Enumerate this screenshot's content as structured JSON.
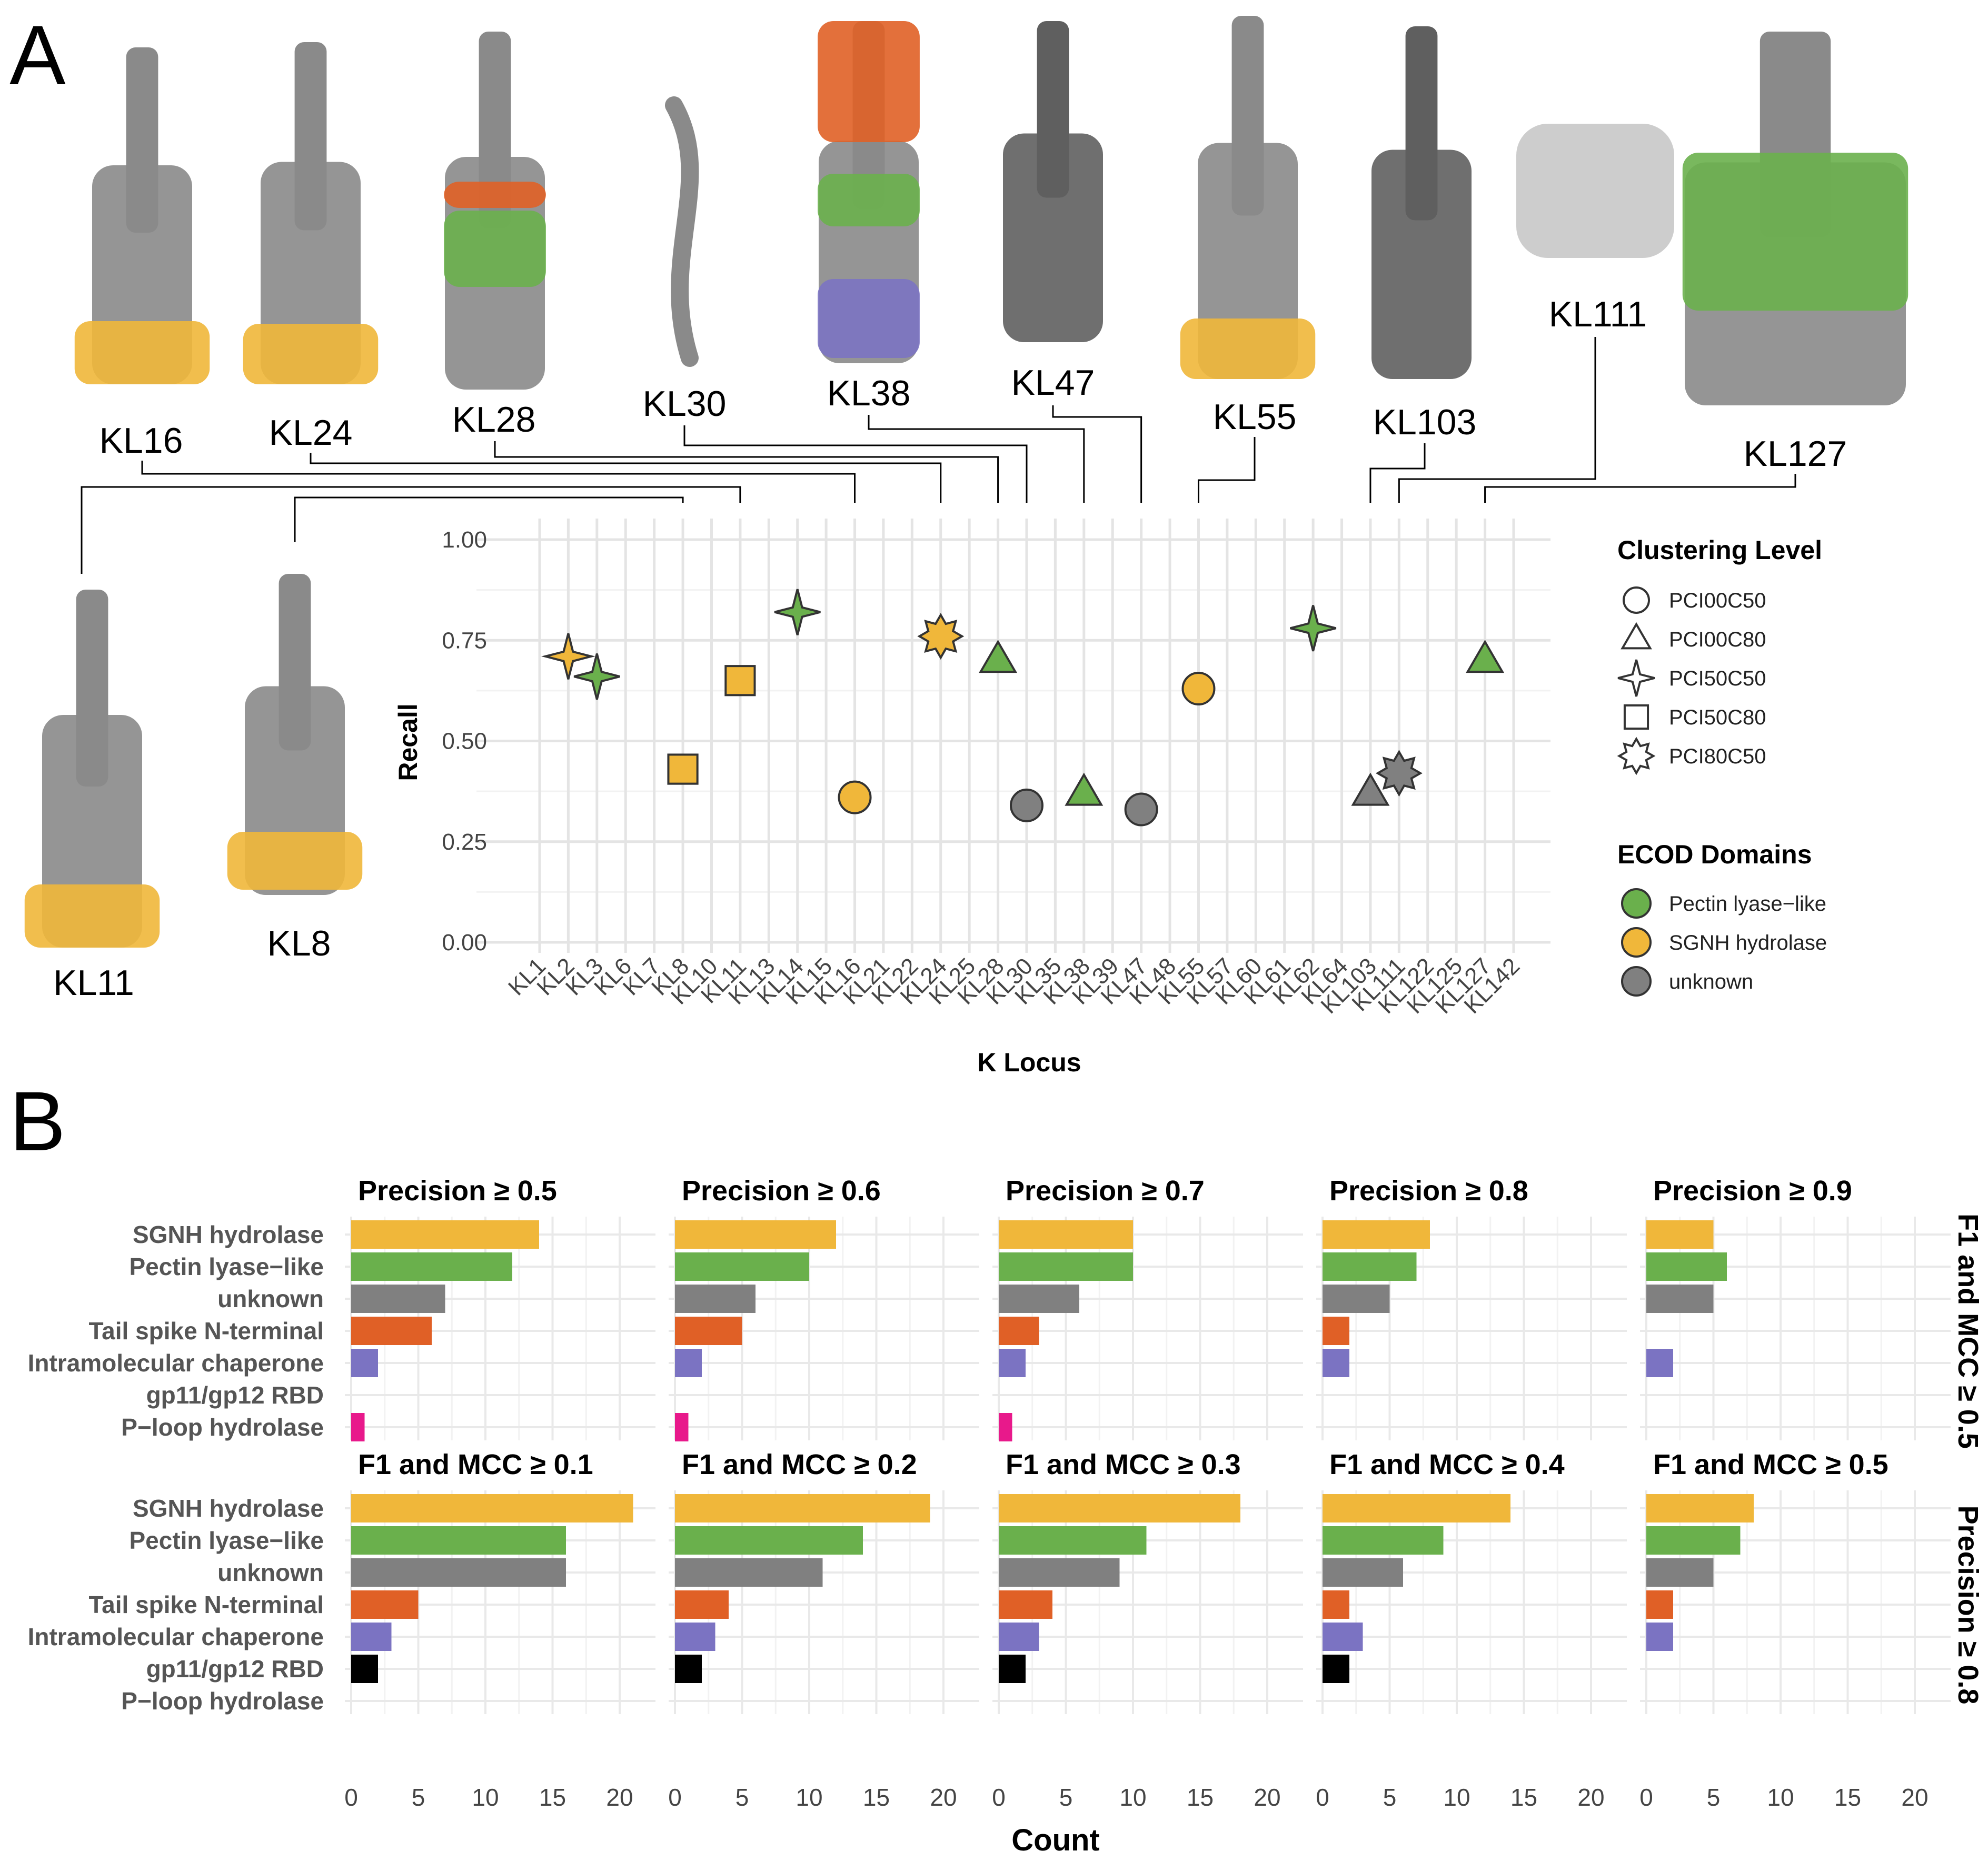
{
  "panel_labels": {
    "a": "A",
    "b": "B"
  },
  "structures": {
    "top": [
      "KL16",
      "KL24",
      "KL28",
      "KL30",
      "KL38",
      "KL47",
      "KL55",
      "KL103",
      "KL111",
      "KL127"
    ],
    "left": [
      "KL11",
      "KL8"
    ]
  },
  "colors": {
    "pectin": "#6ab04c",
    "sgnh": "#f0b73a",
    "unknown": "#808080",
    "tailspike": "#e06026",
    "chaperone": "#7b73c2",
    "rbd": "#000000",
    "ploop": "#e8198b"
  },
  "chart_data": [
    {
      "type": "scatter",
      "xlabel": "K Locus",
      "ylabel": "Recall",
      "ylim": [
        0,
        1
      ],
      "yticks": [
        "0.00",
        "0.25",
        "0.50",
        "0.75",
        "1.00"
      ],
      "categories": [
        "KL1",
        "KL2",
        "KL3",
        "KL6",
        "KL7",
        "KL8",
        "KL10",
        "KL11",
        "KL13",
        "KL14",
        "KL15",
        "KL16",
        "KL21",
        "KL22",
        "KL24",
        "KL25",
        "KL28",
        "KL30",
        "KL35",
        "KL38",
        "KL39",
        "KL47",
        "KL48",
        "KL55",
        "KL57",
        "KL60",
        "KL61",
        "KL62",
        "KL64",
        "KL103",
        "KL111",
        "KL122",
        "KL125",
        "KL127",
        "KL142"
      ],
      "points": [
        {
          "x": "KL2",
          "y": 0.71,
          "shape": "PCI50C50",
          "domain": "SGNH hydrolase"
        },
        {
          "x": "KL3",
          "y": 0.66,
          "shape": "PCI50C50",
          "domain": "Pectin lyase-like"
        },
        {
          "x": "KL8",
          "y": 0.43,
          "shape": "PCI50C80",
          "domain": "SGNH hydrolase"
        },
        {
          "x": "KL11",
          "y": 0.65,
          "shape": "PCI50C80",
          "domain": "SGNH hydrolase"
        },
        {
          "x": "KL14",
          "y": 0.82,
          "shape": "PCI50C50",
          "domain": "Pectin lyase-like"
        },
        {
          "x": "KL16",
          "y": 0.36,
          "shape": "PCI00C50",
          "domain": "SGNH hydrolase"
        },
        {
          "x": "KL24",
          "y": 0.76,
          "shape": "PCI80C50",
          "domain": "SGNH hydrolase"
        },
        {
          "x": "KL28",
          "y": 0.7,
          "shape": "PCI00C80",
          "domain": "Pectin lyase-like"
        },
        {
          "x": "KL30",
          "y": 0.34,
          "shape": "PCI00C50",
          "domain": "unknown"
        },
        {
          "x": "KL38",
          "y": 0.37,
          "shape": "PCI00C80",
          "domain": "Pectin lyase-like"
        },
        {
          "x": "KL47",
          "y": 0.33,
          "shape": "PCI00C50",
          "domain": "unknown"
        },
        {
          "x": "KL55",
          "y": 0.63,
          "shape": "PCI00C50",
          "domain": "SGNH hydrolase"
        },
        {
          "x": "KL62",
          "y": 0.78,
          "shape": "PCI50C50",
          "domain": "Pectin lyase-like"
        },
        {
          "x": "KL103",
          "y": 0.37,
          "shape": "PCI00C80",
          "domain": "unknown"
        },
        {
          "x": "KL111",
          "y": 0.42,
          "shape": "PCI80C50",
          "domain": "unknown"
        },
        {
          "x": "KL127",
          "y": 0.7,
          "shape": "PCI00C80",
          "domain": "Pectin lyase-like"
        }
      ],
      "legend": {
        "shape_title": "Clustering Level",
        "shapes": [
          "PCI00C50",
          "PCI00C80",
          "PCI50C50",
          "PCI50C80",
          "PCI80C50"
        ],
        "color_title": "ECOD Domains",
        "colors": [
          "Pectin lyase−like",
          "SGNH hydrolase",
          "unknown"
        ]
      }
    },
    {
      "type": "bar",
      "xlabel": "Count",
      "xlim": [
        0,
        22
      ],
      "xticks": [
        "0",
        "5",
        "10",
        "15",
        "20"
      ],
      "categories": [
        "SGNH hydrolase",
        "Pectin lyase−like",
        "unknown",
        "Tail spike N-terminal",
        "Intramolecular chaperone",
        "gp11/gp12 RBD",
        "P−loop hydrolase"
      ],
      "rows": [
        {
          "strip": "F1 and MCC ≥ 0.5",
          "facets": [
            {
              "title": "Precision ≥ 0.5",
              "values": [
                14,
                12,
                7,
                6,
                2,
                0,
                1
              ]
            },
            {
              "title": "Precision ≥ 0.6",
              "values": [
                12,
                10,
                6,
                5,
                2,
                0,
                1
              ]
            },
            {
              "title": "Precision ≥ 0.7",
              "values": [
                10,
                10,
                6,
                3,
                2,
                0,
                1
              ]
            },
            {
              "title": "Precision ≥ 0.8",
              "values": [
                8,
                7,
                5,
                2,
                2,
                0,
                0
              ]
            },
            {
              "title": "Precision ≥ 0.9",
              "values": [
                5,
                6,
                5,
                0,
                2,
                0,
                0
              ]
            }
          ]
        },
        {
          "strip": "Precision ≥ 0.8",
          "facets": [
            {
              "title": "F1 and MCC ≥ 0.1",
              "values": [
                21,
                16,
                16,
                5,
                3,
                2,
                0
              ]
            },
            {
              "title": "F1 and MCC ≥ 0.2",
              "values": [
                19,
                14,
                11,
                4,
                3,
                2,
                0
              ]
            },
            {
              "title": "F1 and MCC ≥ 0.3",
              "values": [
                18,
                11,
                9,
                4,
                3,
                2,
                0
              ]
            },
            {
              "title": "F1 and MCC ≥ 0.4",
              "values": [
                14,
                9,
                6,
                2,
                3,
                2,
                0
              ]
            },
            {
              "title": "F1 and MCC ≥ 0.5",
              "values": [
                8,
                7,
                5,
                2,
                2,
                0,
                0
              ]
            }
          ]
        }
      ]
    }
  ]
}
